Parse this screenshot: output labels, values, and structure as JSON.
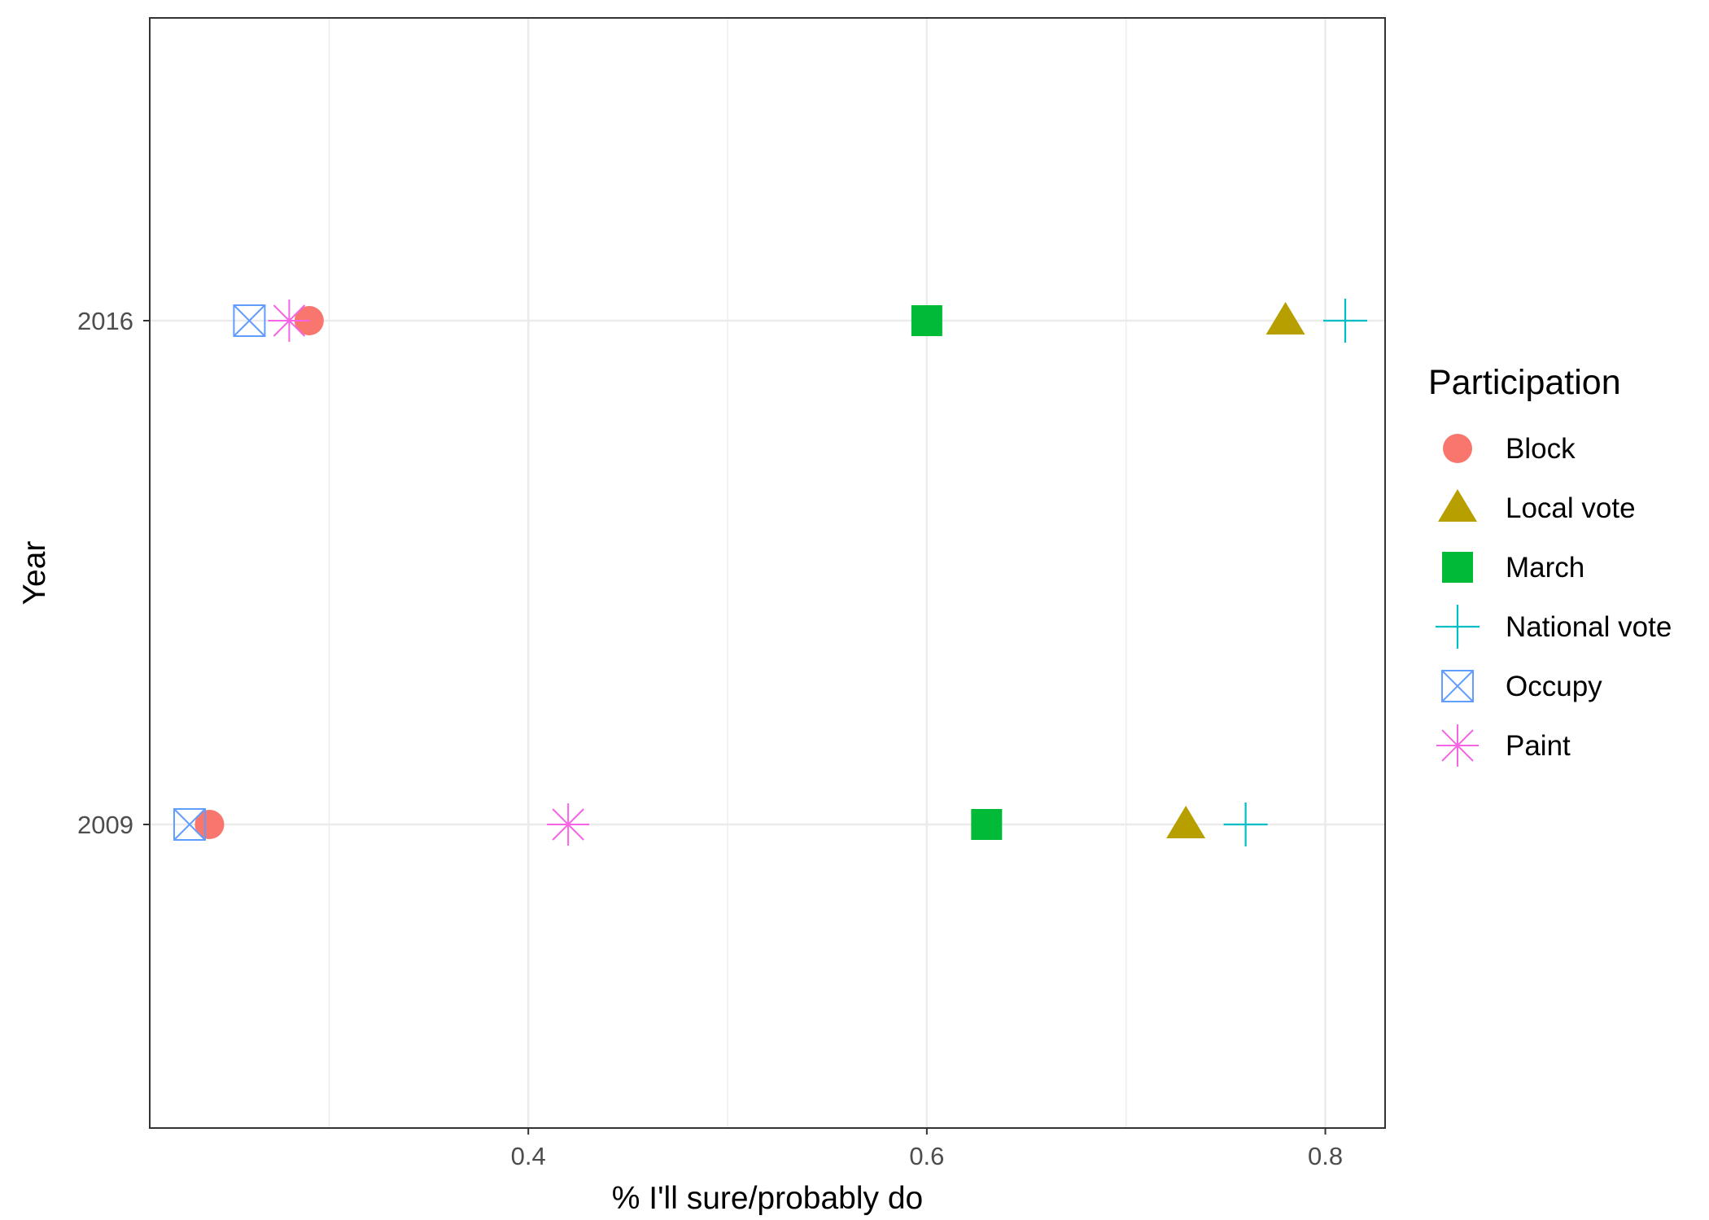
{
  "chart_data": {
    "type": "scatter",
    "title": "",
    "xlabel": "% I'll sure/probably do",
    "ylabel": "Year",
    "xlim": [
      0.21,
      0.83
    ],
    "x_ticks": [
      0.4,
      0.6,
      0.8
    ],
    "x_tick_labels": [
      "0.4",
      "0.6",
      "0.8"
    ],
    "x_minor_gridlines": [
      0.3,
      0.5,
      0.7
    ],
    "categories": [
      "2009",
      "2016"
    ],
    "grid": true,
    "legend": {
      "title": "Participation",
      "position": "right"
    },
    "series": [
      {
        "name": "Block",
        "shape": "circle",
        "color": "#F8766D",
        "points": [
          {
            "y": "2016",
            "x": 0.29
          },
          {
            "y": "2009",
            "x": 0.24
          }
        ]
      },
      {
        "name": "Local vote",
        "shape": "triangle",
        "color": "#B79F00",
        "points": [
          {
            "y": "2016",
            "x": 0.78
          },
          {
            "y": "2009",
            "x": 0.73
          }
        ]
      },
      {
        "name": "March",
        "shape": "square",
        "color": "#00BA38",
        "points": [
          {
            "y": "2016",
            "x": 0.6
          },
          {
            "y": "2009",
            "x": 0.63
          }
        ]
      },
      {
        "name": "National vote",
        "shape": "plus",
        "color": "#00BFC4",
        "points": [
          {
            "y": "2016",
            "x": 0.81
          },
          {
            "y": "2009",
            "x": 0.76
          }
        ]
      },
      {
        "name": "Occupy",
        "shape": "square-cross",
        "color": "#619CFF",
        "points": [
          {
            "y": "2016",
            "x": 0.26
          },
          {
            "y": "2009",
            "x": 0.23
          }
        ]
      },
      {
        "name": "Paint",
        "shape": "asterisk",
        "color": "#F564E3",
        "points": [
          {
            "y": "2016",
            "x": 0.28
          },
          {
            "y": "2009",
            "x": 0.42
          }
        ]
      }
    ]
  }
}
